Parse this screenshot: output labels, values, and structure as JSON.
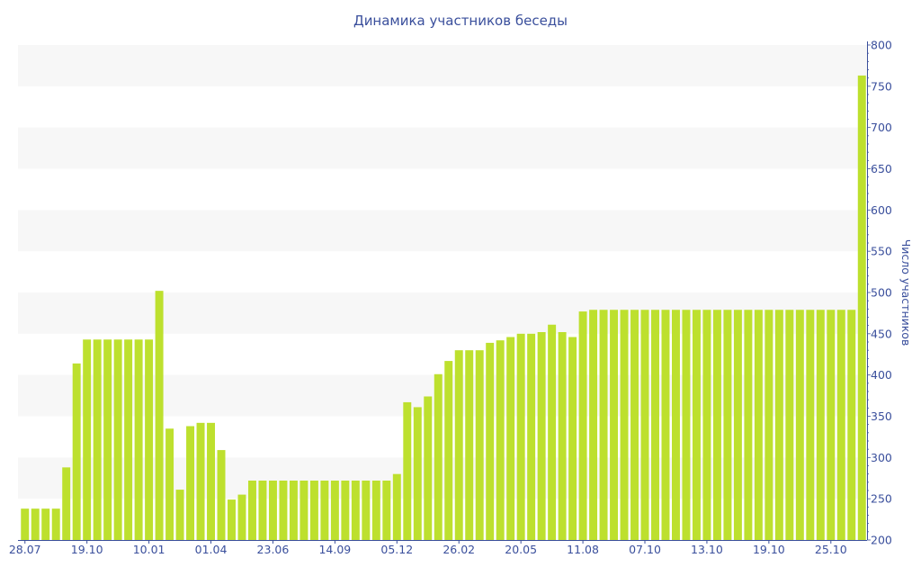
{
  "chart_data": {
    "type": "bar",
    "title": "Динамика участников беседы",
    "xlabel": "",
    "ylabel": "Число участников",
    "ylim": [
      200,
      800
    ],
    "yticks": [
      200,
      250,
      300,
      350,
      400,
      450,
      500,
      550,
      600,
      650,
      700,
      750,
      800
    ],
    "y_axis_side": "right",
    "grid": "alternating horizontal bands",
    "bar_color": "#bde02e",
    "axis_color": "#3a4f9c",
    "x_tick_labels": [
      {
        "bar": 0,
        "label": "28.07"
      },
      {
        "bar": 6,
        "label": "19.10"
      },
      {
        "bar": 12,
        "label": "10.01"
      },
      {
        "bar": 18,
        "label": "01.04"
      },
      {
        "bar": 24,
        "label": "23.06"
      },
      {
        "bar": 30,
        "label": "14.09"
      },
      {
        "bar": 36,
        "label": "05.12"
      },
      {
        "bar": 42,
        "label": "26.02"
      },
      {
        "bar": 48,
        "label": "20.05"
      },
      {
        "bar": 54,
        "label": "11.08"
      },
      {
        "bar": 60,
        "label": "07.10"
      },
      {
        "bar": 66,
        "label": "13.10"
      },
      {
        "bar": 72,
        "label": "19.10"
      },
      {
        "bar": 78,
        "label": "25.10"
      }
    ],
    "values": [
      238,
      238,
      238,
      238,
      288,
      414,
      443,
      443,
      443,
      443,
      443,
      443,
      443,
      502,
      335,
      261,
      338,
      342,
      342,
      309,
      249,
      255,
      272,
      272,
      272,
      272,
      272,
      272,
      272,
      272,
      272,
      272,
      272,
      272,
      272,
      272,
      280,
      367,
      361,
      374,
      401,
      417,
      430,
      430,
      430,
      439,
      442,
      446,
      450,
      450,
      452,
      461,
      452,
      446,
      477,
      479,
      479,
      479,
      479,
      479,
      479,
      479,
      479,
      479,
      479,
      479,
      479,
      479,
      479,
      479,
      479,
      479,
      479,
      479,
      479,
      479,
      479,
      479,
      479,
      479,
      479,
      763
    ]
  }
}
